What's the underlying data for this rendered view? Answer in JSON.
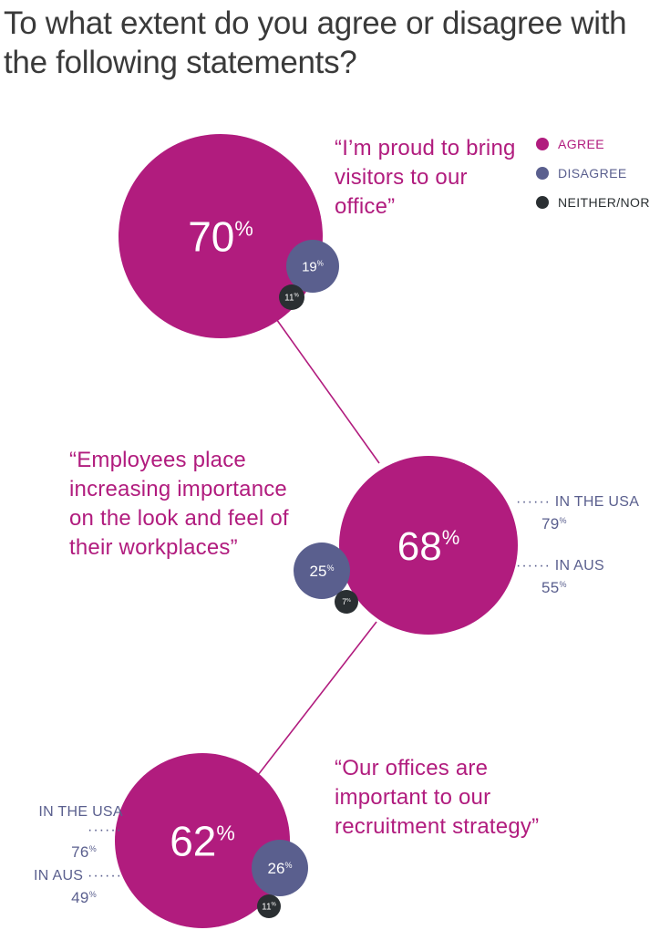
{
  "title": "To what extent do you agree or disagree with the following statements?",
  "colors": {
    "agree": "#b11c7e",
    "disagree": "#5a5f8e",
    "neither": "#2a2f32",
    "connector": "#b11c7e"
  },
  "legend": [
    {
      "label": "AGREE",
      "color": "#b11c7e"
    },
    {
      "label": "DISAGREE",
      "color": "#5a5f8e"
    },
    {
      "label": "NEITHER/NOR",
      "color": "#2a2f32"
    }
  ],
  "statements": [
    {
      "quote": "“I’m proud to bring visitors to our office”",
      "agree_label": "70",
      "disagree_label": "19",
      "neither_label": "11",
      "pct": "%"
    },
    {
      "quote": "“Employees place increasing importance on the look and feel of their workplaces”",
      "agree_label": "68",
      "disagree_label": "25",
      "neither_label": "7",
      "pct": "%",
      "regions": [
        {
          "label": "IN THE USA",
          "value": "79"
        },
        {
          "label": "IN AUS",
          "value": "55"
        }
      ]
    },
    {
      "quote": "“Our offices are important to our recruitment strategy”",
      "agree_label": "62",
      "disagree_label": "26",
      "neither_label": "11",
      "pct": "%",
      "regions": [
        {
          "label": "IN THE USA",
          "value": "76"
        },
        {
          "label": "IN AUS",
          "value": "49"
        }
      ]
    }
  ],
  "chart_data": {
    "type": "bubble",
    "title": "To what extent do you agree or disagree with the following statements?",
    "categories": [
      "“I’m proud to bring visitors to our office”",
      "“Employees place increasing importance on the look and feel of their workplaces”",
      "“Our offices are important to our recruitment strategy”"
    ],
    "series": [
      {
        "name": "AGREE",
        "values": [
          70,
          68,
          62
        ]
      },
      {
        "name": "DISAGREE",
        "values": [
          19,
          25,
          26
        ]
      },
      {
        "name": "NEITHER/NOR",
        "values": [
          11,
          7,
          11
        ]
      }
    ],
    "regional_agree": [
      null,
      {
        "IN THE USA": 79,
        "IN AUS": 55
      },
      {
        "IN THE USA": 76,
        "IN AUS": 49
      }
    ],
    "unit": "%",
    "legend_position": "top-right"
  }
}
